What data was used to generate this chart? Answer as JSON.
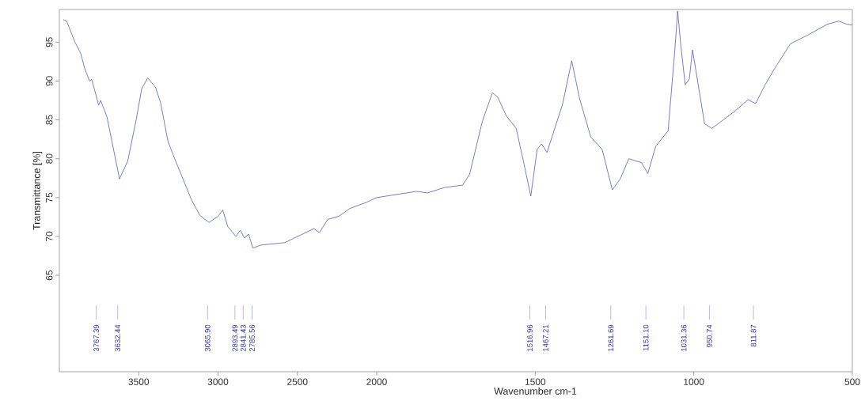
{
  "chart_data": [
    {
      "type": "line",
      "ylabel": "Transmittance [%]",
      "xlim": [
        4000,
        2000
      ],
      "ylim": [
        52.6,
        99.2
      ],
      "xticks": [
        3500,
        3000,
        2500,
        2000
      ],
      "yticks": [
        65,
        70,
        75,
        80,
        85,
        90,
        95
      ],
      "grid": false,
      "series": [
        {
          "color": "#5a5ab4",
          "x": [
            3975,
            3954,
            3902,
            3866,
            3840,
            3810,
            3796,
            3752,
            3740,
            3700,
            3621,
            3569,
            3516,
            3481,
            3443,
            3394,
            3362,
            3315,
            3271,
            3167,
            3114,
            3057,
            3000,
            2970,
            2939,
            2887,
            2860,
            2833,
            2807,
            2781,
            2729,
            2580,
            2396,
            2361,
            2308,
            2239,
            2169,
            2064,
            2000
          ],
          "values": [
            97.9,
            97.7,
            95.0,
            93.6,
            91.6,
            90.0,
            90.2,
            86.9,
            87.5,
            85.4,
            77.4,
            79.7,
            85.0,
            89.0,
            90.4,
            89.2,
            87.2,
            82.2,
            79.9,
            74.7,
            72.7,
            71.8,
            72.6,
            73.4,
            71.3,
            70.0,
            70.8,
            69.8,
            70.3,
            68.5,
            68.9,
            69.2,
            71.0,
            70.5,
            72.2,
            72.6,
            73.6,
            74.4,
            75.0
          ]
        }
      ],
      "ref_lines": [
        {
          "axis": "x",
          "value": 3767.39,
          "label": "3767.39",
          "color": "#a8a8d8"
        },
        {
          "axis": "x",
          "value": 3632.44,
          "label": "3632.44",
          "color": "#a8a8d8"
        },
        {
          "axis": "x",
          "value": 3065.9,
          "label": "3065.90",
          "color": "#a8a8d8"
        },
        {
          "axis": "x",
          "value": 2893.49,
          "label": "2893.49",
          "color": "#a8a8d8"
        },
        {
          "axis": "x",
          "value": 2841.43,
          "label": "2841.43",
          "color": "#a8a8d8"
        },
        {
          "axis": "x",
          "value": 2785.56,
          "label": "2785.56",
          "color": "#a8a8d8"
        }
      ]
    },
    {
      "type": "line",
      "xlabel": "Wavenumber cm-1",
      "xlim": [
        2000,
        500
      ],
      "ylim": [
        52.6,
        99.2
      ],
      "xticks": [
        1500,
        1000,
        500
      ],
      "tick_labels": "x",
      "grid": false,
      "series": [
        {
          "color": "#5a5ab4",
          "x": [
            2000,
            1875,
            1840,
            1786,
            1729,
            1707,
            1667,
            1635,
            1618,
            1591,
            1560,
            1538,
            1514,
            1494,
            1480,
            1463,
            1414,
            1385,
            1360,
            1325,
            1289,
            1257,
            1232,
            1205,
            1165,
            1145,
            1120,
            1081,
            1060,
            1051,
            1041,
            1027,
            1014,
            1004,
            966,
            943,
            868,
            829,
            805,
            774,
            739,
            695,
            641,
            579,
            543,
            517,
            500
          ],
          "values": [
            75.0,
            75.8,
            75.6,
            76.3,
            76.6,
            78.0,
            84.8,
            88.5,
            87.9,
            85.5,
            83.9,
            79.8,
            75.2,
            81.2,
            81.9,
            80.8,
            87.0,
            92.6,
            87.7,
            82.8,
            81.2,
            76.0,
            77.4,
            80.0,
            79.5,
            78.1,
            81.6,
            83.6,
            93.9,
            99.0,
            94.6,
            89.5,
            90.3,
            94.0,
            84.5,
            83.9,
            86.2,
            87.6,
            87.1,
            89.6,
            92.0,
            94.8,
            95.9,
            97.3,
            97.7,
            97.3,
            97.2
          ]
        }
      ],
      "ref_lines": [
        {
          "axis": "x",
          "value": 1516.96,
          "label": "1516.96",
          "color": "#a8a8d8"
        },
        {
          "axis": "x",
          "value": 1467.21,
          "label": "1467.21",
          "color": "#a8a8d8"
        },
        {
          "axis": "x",
          "value": 1261.69,
          "label": "1261.69",
          "color": "#a8a8d8"
        },
        {
          "axis": "x",
          "value": 1151.1,
          "label": "1151.10",
          "color": "#a8a8d8"
        },
        {
          "axis": "x",
          "value": 1031.36,
          "label": "1031.36",
          "color": "#a8a8d8"
        },
        {
          "axis": "x",
          "value": 950.74,
          "label": "950.74",
          "color": "#a8a8d8"
        },
        {
          "axis": "x",
          "value": 811.87,
          "label": "811.87",
          "color": "#a8a8d8"
        }
      ]
    }
  ]
}
